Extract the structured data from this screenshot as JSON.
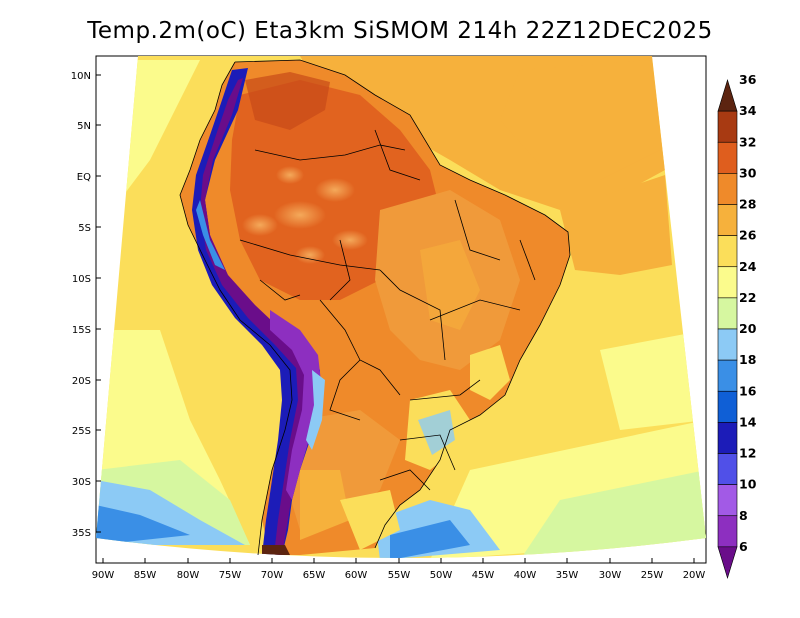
{
  "title": "Temp.2m(oC) Eta3km SiSMOM 214h 22Z12DEC2025",
  "map": {
    "lat_labels": [
      "10N",
      "5N",
      "EQ",
      "5S",
      "10S",
      "15S",
      "20S",
      "25S",
      "30S",
      "35S"
    ],
    "lon_labels": [
      "90W",
      "85W",
      "80W",
      "75W",
      "70W",
      "65W",
      "60W",
      "55W",
      "50W",
      "45W",
      "40W",
      "35W",
      "30W",
      "25W",
      "20W"
    ],
    "lat_range_deg": [
      -38,
      11
    ],
    "lon_range_deg": [
      -91,
      -20
    ]
  },
  "colorbar": {
    "unit": "oC",
    "levels": [
      "6",
      "8",
      "10",
      "12",
      "14",
      "16",
      "18",
      "20",
      "22",
      "24",
      "26",
      "28",
      "30",
      "32",
      "34",
      "36"
    ],
    "colors": [
      "#6a0d8a",
      "#8d2fc0",
      "#a25ae6",
      "#5050e8",
      "#1c1cb8",
      "#0f5fd6",
      "#3a8fe6",
      "#8ccaf5",
      "#d6f7a0",
      "#fbfb8c",
      "#fbde5a",
      "#f6b13c",
      "#ef8a2a",
      "#df5e1e",
      "#a83a12",
      "#5c2410"
    ]
  }
}
